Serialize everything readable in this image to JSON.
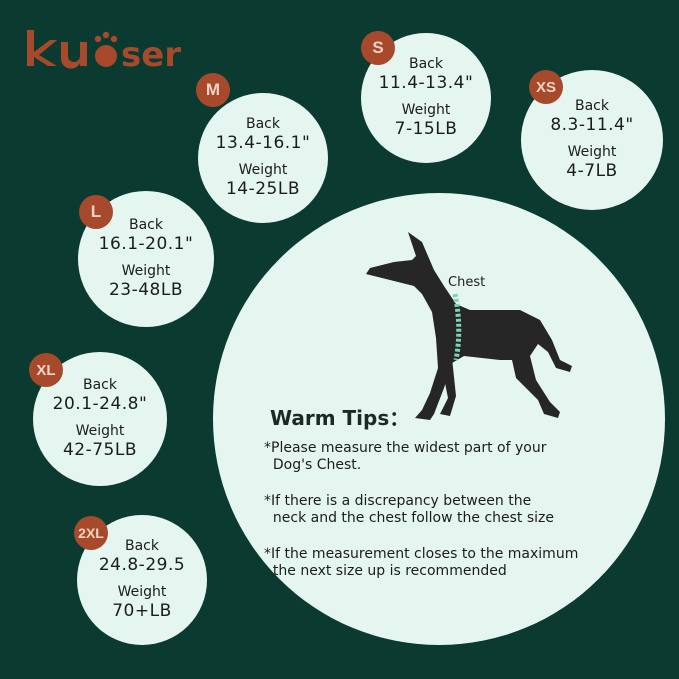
{
  "brand": {
    "logo_text": "kuoser",
    "color": "#a74a2c"
  },
  "colors": {
    "background": "#0b3a30",
    "circle": "#e4f6ef",
    "badge": "#a74a2c"
  },
  "sizes": [
    {
      "size": "S",
      "back_label": "Back",
      "back": "11.4-13.4\"",
      "weight_label": "Weight",
      "weight": "7-15LB"
    },
    {
      "size": "M",
      "back_label": "Back",
      "back": "13.4-16.1\"",
      "weight_label": "Weight",
      "weight": "14-25LB"
    },
    {
      "size": "XS",
      "back_label": "Back",
      "back": "8.3-11.4\"",
      "weight_label": "Weight",
      "weight": "4-7LB"
    },
    {
      "size": "L",
      "back_label": "Back",
      "back": "16.1-20.1\"",
      "weight_label": "Weight",
      "weight": "23-48LB"
    },
    {
      "size": "XL",
      "back_label": "Back",
      "back": "20.1-24.8\"",
      "weight_label": "Weight",
      "weight": "42-75LB"
    },
    {
      "size": "2XL",
      "back_label": "Back",
      "back": "24.8-29.5",
      "weight_label": "Weight",
      "weight": "70+LB"
    }
  ],
  "diagram": {
    "chest_label": "Chest",
    "icon": "dog-silhouette"
  },
  "tips": {
    "title": "Warm Tips：",
    "items": [
      "*Please measure the widest part of your\n  Dog's Chest.",
      "*If there is a discrepancy between the\n  neck and the chest follow the chest size",
      "*If the measurement closes to the maximum\n  the next size up is recommended"
    ]
  }
}
